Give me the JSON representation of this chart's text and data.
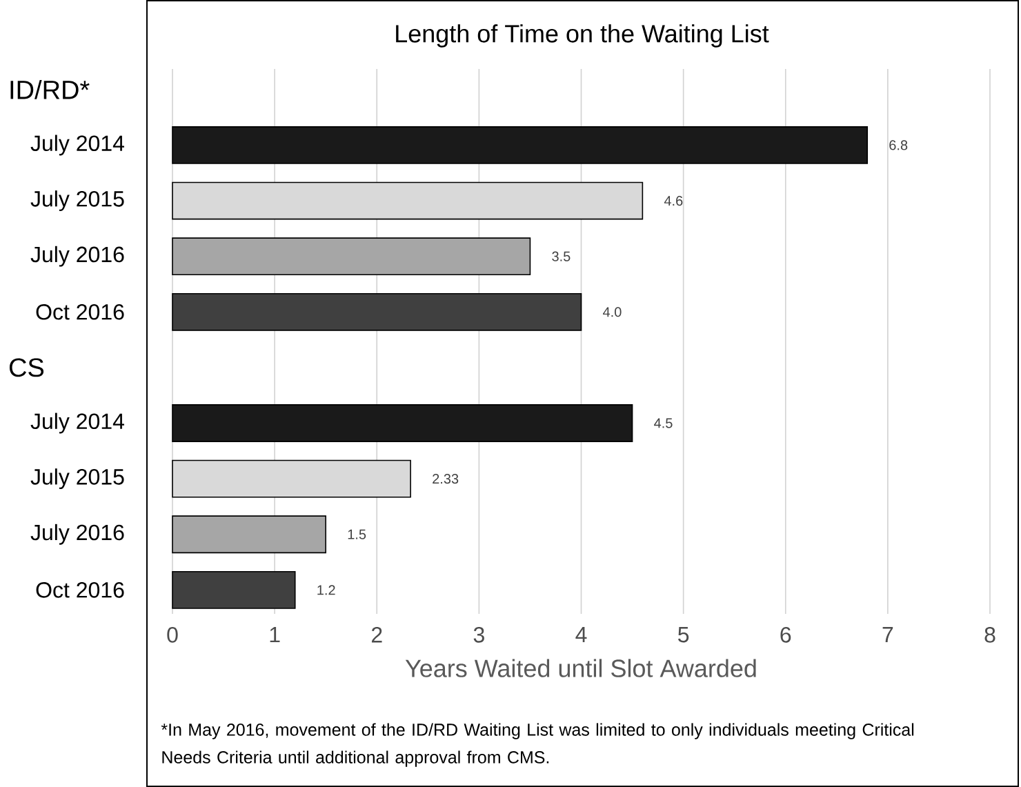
{
  "chart_data": {
    "type": "bar",
    "orientation": "horizontal",
    "title": "Length of Time on the Waiting List",
    "xlabel": "Years Waited until Slot Awarded",
    "categories": [
      null,
      "July 2014",
      "July 2015",
      "July 2016",
      "Oct 2016",
      null,
      "July 2014",
      "July 2015",
      "July 2016",
      "Oct 2016"
    ],
    "values": [
      null,
      6.8,
      4.6,
      3.5,
      4.0,
      null,
      4.5,
      2.33,
      1.5,
      1.2
    ],
    "value_labels": [
      null,
      "6.8",
      "4.6",
      "3.5",
      "4.0",
      null,
      "4.5",
      "2.33",
      "1.5",
      "1.2"
    ],
    "colors": [
      "#1a1a1a",
      "#1a1a1a",
      "#d9d9d9",
      "#a6a6a6",
      "#404040",
      "#1a1a1a",
      "#1a1a1a",
      "#d9d9d9",
      "#a6a6a6",
      "#404040"
    ],
    "xlim": [
      0,
      8
    ],
    "xticks": [
      0,
      1,
      2,
      3,
      4,
      5,
      6,
      7,
      8
    ],
    "grid": "x",
    "annotations": [
      "ID/RD*",
      "CS",
      "*In May 2016, movement of the ID/RD Waiting List was limited to only individuals meeting Critical Needs Criteria until additional approval from CMS."
    ]
  }
}
